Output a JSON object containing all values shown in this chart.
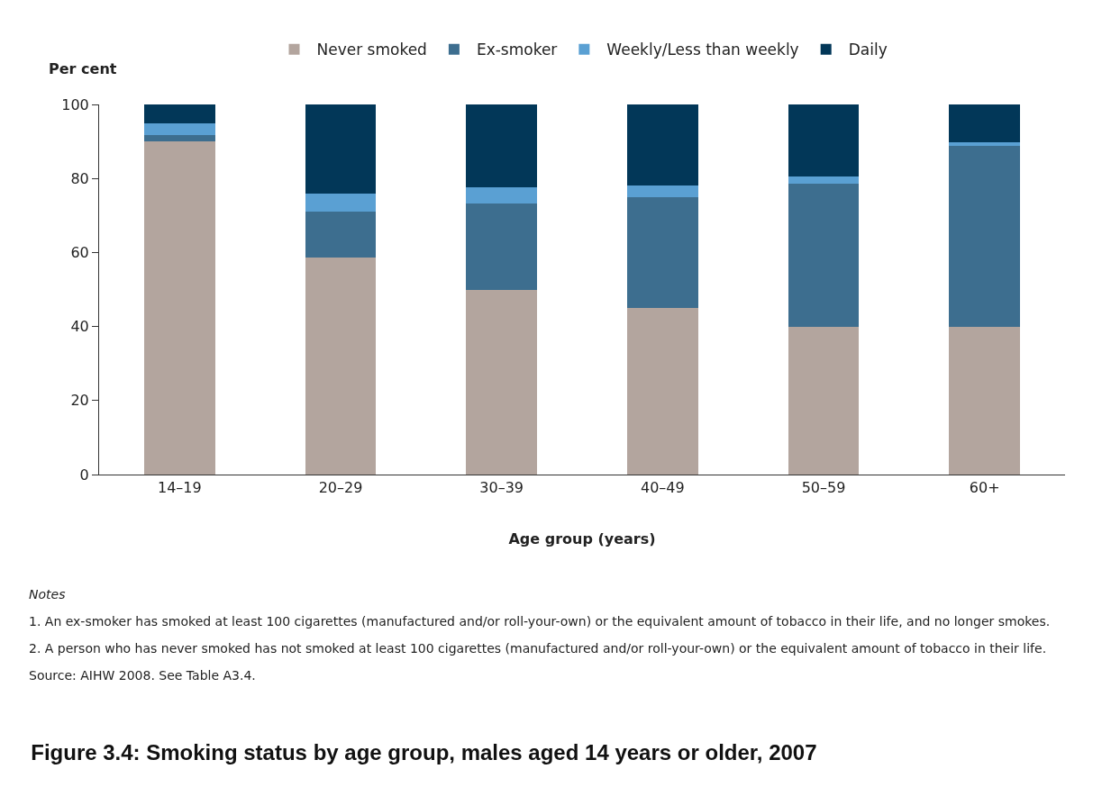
{
  "chart_data": {
    "type": "bar",
    "title": "Figure 3.4: Smoking status by age group, males aged 14 years or older, 2007",
    "xlabel": "Age group (years)",
    "ylabel": "Per cent",
    "categories": [
      "14–19",
      "20–29",
      "30–39",
      "40–49",
      "50–59",
      "60+"
    ],
    "series": [
      {
        "name": "Never smoked",
        "color": "#b3a59e",
        "values": [
          90.0,
          58.7,
          50.0,
          45.1,
          40.0,
          40.0
        ]
      },
      {
        "name": "Ex-smoker",
        "color": "#3d6e8f",
        "values": [
          1.7,
          12.4,
          23.2,
          29.8,
          38.6,
          48.7
        ]
      },
      {
        "name": "Weekly/Less than weekly",
        "color": "#5aa0d3",
        "values": [
          3.2,
          4.9,
          4.5,
          3.2,
          2.0,
          1.2
        ]
      },
      {
        "name": "Daily",
        "color": "#023758",
        "values": [
          5.1,
          24.0,
          22.3,
          21.9,
          19.4,
          10.1
        ]
      }
    ],
    "stacked": true,
    "ylim": [
      0,
      100
    ],
    "yticks": [
      0,
      20,
      40,
      60,
      80,
      100
    ],
    "grid": false,
    "legend": "top",
    "annotations": [
      "Notes",
      "1. An ex-smoker has smoked at least 100 cigarettes (manufactured and/or roll-your-own) or the equivalent amount of tobacco in their life, and no longer smokes.",
      "2. A person who has never smoked has not smoked at least 100 cigarettes (manufactured and/or roll-your-own) or the equivalent amount of tobacco in their life.",
      "Source: AIHW 2008. See Table A3.4."
    ]
  }
}
